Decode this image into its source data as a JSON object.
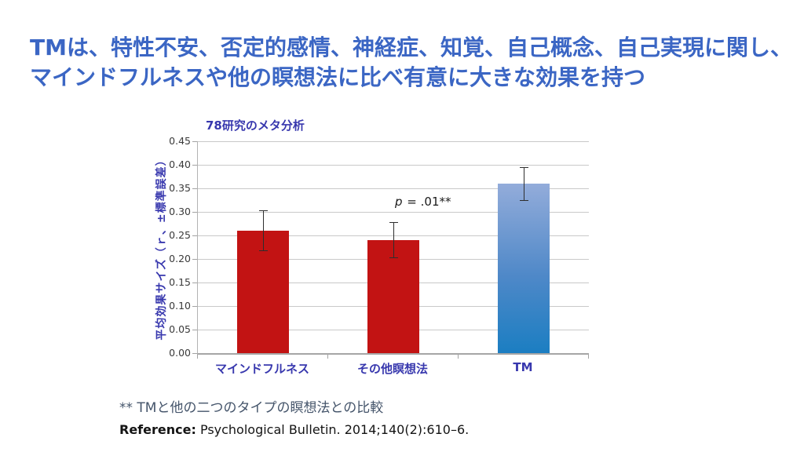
{
  "slide": {
    "title_line1": "TMは、特性不安、否定的感情、神経症、知覚、自己概念、自己実現に関し、",
    "title_line2": "マインドフルネスや他の瞑想法に比べ有意に大きな効果を持つ",
    "footnote": "** TMと他の二つのタイプの瞑想法との比較",
    "reference_label": "Reference:",
    "reference_text": " Psychological Bulletin. 2014;140(2):610–6."
  },
  "colors": {
    "title_blue": "#3B66C4",
    "chart_text_indigo": "#3838AE",
    "tick_label_gray": "#3A3A3A",
    "bar_red": "#C21313",
    "bar_blue_top": "#93ACDA",
    "bar_blue_mid": "#4E88C8",
    "bar_blue_bottom": "#1B7EC2",
    "gridline_gray": "#C9C9C9",
    "footnote_slate": "#44546A"
  },
  "chart_data": {
    "type": "bar",
    "title": "78研究のメタ分析",
    "categories": [
      "マインドフルネス",
      "その他瞑想法",
      "TM"
    ],
    "slugs": [
      "mindfulness",
      "other-meditation",
      "tm"
    ],
    "values": [
      0.26,
      0.24,
      0.36
    ],
    "error_bars": [
      0.042,
      0.038,
      0.035
    ],
    "bar_styles": [
      "red",
      "red",
      "blue"
    ],
    "ylabel": "平均効果サイズ（ｒ、±標準誤差）",
    "xlabel": "",
    "ylim": [
      0,
      0.45
    ],
    "ytick_step": 0.05,
    "yticks": [
      "0.00",
      "0.05",
      "0.10",
      "0.15",
      "0.20",
      "0.25",
      "0.30",
      "0.35",
      "0.40",
      "0.45"
    ],
    "grid": "horizontal",
    "legend": "none",
    "annotation_p": "p",
    "annotation_rest": " = .01**"
  }
}
